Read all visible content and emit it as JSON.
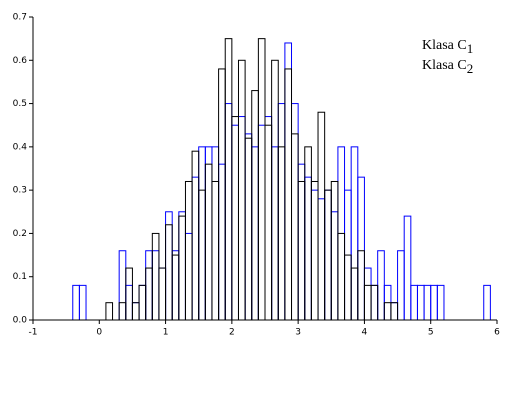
{
  "chart_data": {
    "type": "histogram",
    "bins": [
      -0.4,
      -0.3,
      -0.2,
      -0.1,
      0,
      0.1,
      0.2,
      0.3,
      0.4,
      0.5,
      0.6,
      0.7,
      0.8,
      0.9,
      1,
      1.1,
      1.2,
      1.3,
      1.4,
      1.5,
      1.6,
      1.7,
      1.8,
      1.9,
      2,
      2.1,
      2.2,
      2.3,
      2.4,
      2.5,
      2.6,
      2.7,
      2.8,
      2.9,
      3,
      3.1,
      3.2,
      3.3,
      3.4,
      3.5,
      3.6,
      3.7,
      3.8,
      3.9,
      4,
      4.1,
      4.2,
      4.3,
      4.4,
      4.5,
      4.6,
      4.7,
      4.8,
      4.9,
      5,
      5.1,
      5.2,
      5.3,
      5.4,
      5.5,
      5.6,
      5.7,
      5.8,
      5.9
    ],
    "series": [
      {
        "name": "Klasa C1",
        "color": "#0000ff",
        "values": [
          0.08,
          0.08,
          0,
          0,
          0,
          0,
          0,
          0.16,
          0.08,
          0.04,
          0.08,
          0.16,
          0.16,
          0.12,
          0.25,
          0.16,
          0.25,
          0.2,
          0.33,
          0.4,
          0.4,
          0.4,
          0.36,
          0.5,
          0.45,
          0.47,
          0.43,
          0.4,
          0.45,
          0.47,
          0.4,
          0.5,
          0.64,
          0.5,
          0.36,
          0.33,
          0.3,
          0.28,
          0.3,
          0.25,
          0.4,
          0.3,
          0.4,
          0.33,
          0.12,
          0.08,
          0.16,
          0.08,
          0.04,
          0.16,
          0.24,
          0.08,
          0.08,
          0.08,
          0.08,
          0.08,
          0,
          0,
          0,
          0,
          0,
          0,
          0.08
        ]
      },
      {
        "name": "Klasa C2",
        "color": "#000000",
        "values": [
          0,
          0,
          0,
          0,
          0,
          0.04,
          0,
          0.04,
          0.12,
          0.04,
          0.08,
          0.12,
          0.2,
          0.12,
          0.22,
          0.15,
          0.24,
          0.32,
          0.39,
          0.3,
          0.36,
          0.32,
          0.58,
          0.65,
          0.47,
          0.6,
          0.42,
          0.53,
          0.65,
          0.45,
          0.6,
          0.4,
          0.58,
          0.43,
          0.32,
          0.4,
          0.32,
          0.48,
          0.3,
          0.32,
          0.2,
          0.15,
          0.12,
          0.16,
          0.08,
          0.08,
          0,
          0.04,
          0.04,
          0,
          0,
          0,
          0,
          0,
          0,
          0,
          0,
          0,
          0,
          0,
          0,
          0,
          0
        ]
      }
    ],
    "xlim": [
      -1,
      6
    ],
    "xticks": [
      -1,
      0,
      1,
      2,
      3,
      4,
      5,
      6
    ],
    "ylim": [
      0,
      0.7
    ],
    "yticks": [
      {
        "value": 0,
        "label": "0.0"
      },
      0.1,
      0.2,
      0.3,
      0.4,
      0.5,
      0.6,
      0.7
    ],
    "legend": "upper right"
  }
}
